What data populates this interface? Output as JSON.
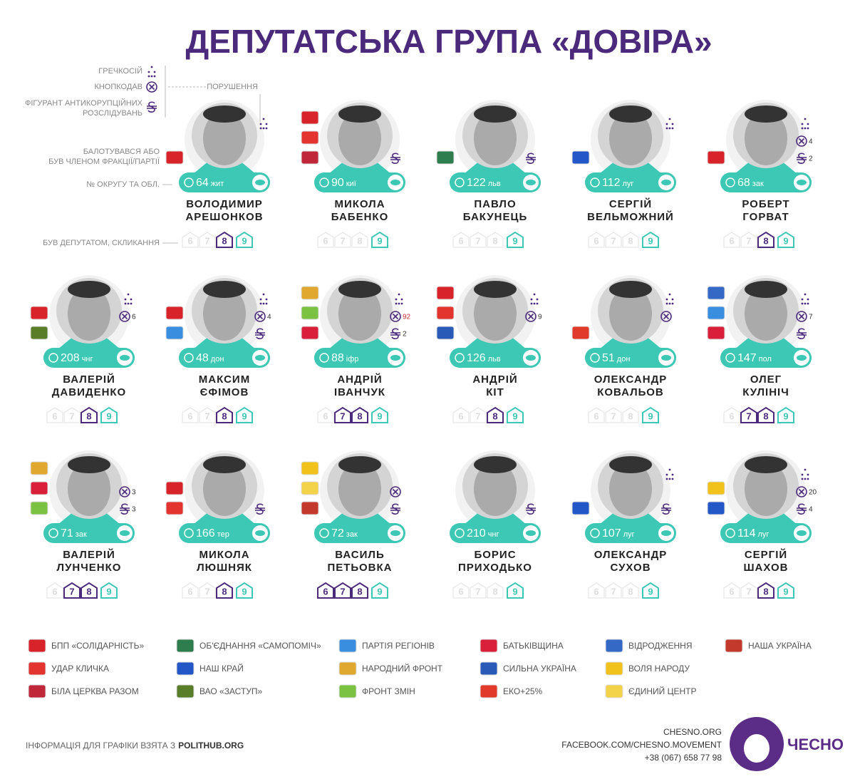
{
  "title": "ДЕПУТАТСЬКА ГРУПА «ДОВІРА»",
  "key": {
    "buckwheat": "ГРЕЧКОСІЙ",
    "button": "КНОПКОДАВ",
    "anticorruption": [
      "ФІГУРАНТ АНТИКОРУПЦІЙНИХ",
      "РОЗСЛІДУВАНЬ"
    ],
    "violations": "ПОРУШЕННЯ",
    "party": [
      "БАЛОТУВАВСЯ АБО",
      "БУВ ЧЛЕНОМ ФРАКЦІЇ/ПАРТІЇ"
    ],
    "district": "№ ОКРУГУ ТА ОБЛ.",
    "convocations": "БУВ ДЕПУТАТОМ, СКЛИКАННЯ"
  },
  "convocation_labels": [
    6,
    7,
    8,
    9
  ],
  "deputies": [
    {
      "name": [
        "ВОЛОДИМИР",
        "АРЕШОНКОВ"
      ],
      "district": 64,
      "region": "жит",
      "parties": [
        0
      ],
      "buckwheat": true,
      "button": false,
      "anticorruption": false,
      "convocations": [
        8,
        9
      ]
    },
    {
      "name": [
        "МИКОЛА",
        "БАБЕНКО"
      ],
      "district": 90,
      "region": "киї",
      "parties": [
        0,
        1,
        2
      ],
      "buckwheat": false,
      "button": false,
      "anticorruption": true,
      "convocations": [
        9
      ]
    },
    {
      "name": [
        "ПАВЛО",
        "БАКУНЕЦЬ"
      ],
      "district": 122,
      "region": "льв",
      "parties": [
        3
      ],
      "buckwheat": false,
      "button": false,
      "anticorruption": true,
      "convocations": [
        9
      ]
    },
    {
      "name": [
        "СЕРГІЙ",
        "ВЕЛЬМОЖНИЙ"
      ],
      "district": 112,
      "region": "луг",
      "parties": [
        4
      ],
      "buckwheat": true,
      "button": false,
      "anticorruption": false,
      "convocations": [
        9
      ]
    },
    {
      "name": [
        "РОБЕРТ",
        "ГОРВАТ"
      ],
      "district": 68,
      "region": "зак",
      "parties": [
        0
      ],
      "buckwheat": true,
      "button": 4,
      "anticorruption": 2,
      "convocations": [
        8,
        9
      ]
    },
    {
      "name": [
        "ВАЛЕРІЙ",
        "ДАВИДЕНКО"
      ],
      "district": 208,
      "region": "чнг",
      "parties": [
        0,
        5
      ],
      "buckwheat": true,
      "button": 6,
      "anticorruption": false,
      "convocations": [
        8,
        9
      ]
    },
    {
      "name": [
        "МАКСИМ",
        "ЄФІМОВ"
      ],
      "district": 48,
      "region": "дон",
      "parties": [
        0,
        6
      ],
      "buckwheat": true,
      "button": 4,
      "anticorruption": true,
      "convocations": [
        8,
        9
      ]
    },
    {
      "name": [
        "АНДРІЙ",
        "ІВАНЧУК"
      ],
      "district": 88,
      "region": "іфр",
      "parties": [
        7,
        8,
        9
      ],
      "buckwheat": true,
      "button": 92,
      "anticorruption": 2,
      "convocations": [
        7,
        8,
        9
      ]
    },
    {
      "name": [
        "АНДРІЙ",
        "КІТ"
      ],
      "district": 126,
      "region": "льв",
      "parties": [
        0,
        1,
        10
      ],
      "buckwheat": true,
      "button": 9,
      "anticorruption": false,
      "convocations": [
        8,
        9
      ]
    },
    {
      "name": [
        "ОЛЕКСАНДР",
        "КОВАЛЬОВ"
      ],
      "district": 51,
      "region": "дон",
      "parties": [
        11
      ],
      "buckwheat": true,
      "button": true,
      "anticorruption": false,
      "convocations": [
        9
      ]
    },
    {
      "name": [
        "ОЛЕГ",
        "КУЛІНІЧ"
      ],
      "district": 147,
      "region": "пол",
      "parties": [
        12,
        6,
        9
      ],
      "buckwheat": true,
      "button": 7,
      "anticorruption": true,
      "convocations": [
        7,
        8,
        9
      ]
    },
    {
      "name": [
        "ВАЛЕРІЙ",
        "ЛУНЧЕНКО"
      ],
      "district": 71,
      "region": "зак",
      "parties": [
        7,
        9,
        8
      ],
      "buckwheat": false,
      "button": 3,
      "anticorruption": 3,
      "convocations": [
        7,
        8,
        9
      ]
    },
    {
      "name": [
        "МИКОЛА",
        "ЛЮШНЯК"
      ],
      "district": 166,
      "region": "тер",
      "parties": [
        0,
        1
      ],
      "buckwheat": false,
      "button": false,
      "anticorruption": true,
      "convocations": [
        8,
        9
      ]
    },
    {
      "name": [
        "ВАСИЛЬ",
        "ПЕТЬОВКА"
      ],
      "district": 72,
      "region": "зак",
      "parties": [
        13,
        14,
        15
      ],
      "buckwheat": false,
      "button": true,
      "anticorruption": true,
      "convocations": [
        6,
        7,
        8,
        9
      ]
    },
    {
      "name": [
        "БОРИС",
        "ПРИХОДЬКО"
      ],
      "district": 210,
      "region": "чнг",
      "parties": [],
      "buckwheat": false,
      "button": false,
      "anticorruption": true,
      "convocations": [
        9
      ]
    },
    {
      "name": [
        "ОЛЕКСАНДР",
        "СУХОВ"
      ],
      "district": 107,
      "region": "луг",
      "parties": [
        4
      ],
      "buckwheat": true,
      "button": false,
      "anticorruption": true,
      "convocations": [
        9
      ]
    },
    {
      "name": [
        "СЕРГІЙ",
        "ШАХОВ"
      ],
      "district": 114,
      "region": "луг",
      "parties": [
        13,
        4
      ],
      "buckwheat": true,
      "button": 20,
      "anticorruption": 4,
      "convocations": [
        8,
        9
      ]
    }
  ],
  "parties": [
    {
      "label": "БПП «СОЛІДАРНІСТЬ»",
      "color": "#d8232a"
    },
    {
      "label": "УДАР КЛИЧКА",
      "color": "#e3342f"
    },
    {
      "label": "БІЛА ЦЕРКВА РАЗОМ",
      "color": "#c0283a"
    },
    {
      "label": "ОБ'ЄДНАННЯ «САМОПОМІЧ»",
      "color": "#2e7d4f"
    },
    {
      "label": "НАШ КРАЙ",
      "color": "#2356c7"
    },
    {
      "label": "ВАО «ЗАСТУП»",
      "color": "#5a7d2a"
    },
    {
      "label": "ПАРТІЯ РЕГІОНІВ",
      "color": "#3a8ee0"
    },
    {
      "label": "НАРОДНИЙ ФРОНТ",
      "color": "#e0a82e"
    },
    {
      "label": "ФРОНТ ЗМІН",
      "color": "#7cc242"
    },
    {
      "label": "БАТЬКІВЩИНА",
      "color": "#d91f3a"
    },
    {
      "label": "СИЛЬНА УКРАЇНА",
      "color": "#2a5ab8"
    },
    {
      "label": "ЕКО+25%",
      "color": "#e23a2a"
    },
    {
      "label": "ВІДРОДЖЕННЯ",
      "color": "#3569c6"
    },
    {
      "label": "ВОЛЯ НАРОДУ",
      "color": "#f1c21b"
    },
    {
      "label": "ЄДИНИЙ ЦЕНТР",
      "color": "#f3d34a"
    },
    {
      "label": "НАША УКРАЇНА",
      "color": "#c33a2c"
    }
  ],
  "footer": {
    "source": "ІНФОРМАЦІЯ ДЛЯ ГРАФІКИ ВЗЯТА З",
    "source_site": "POLITHUB.ORG",
    "contacts": [
      "CHESNO.ORG",
      "FACEBOOK.COM/CHESNO.MOVEMENT",
      "+38 (067) 658 77 98"
    ],
    "logo": "ЧЕСНО"
  }
}
